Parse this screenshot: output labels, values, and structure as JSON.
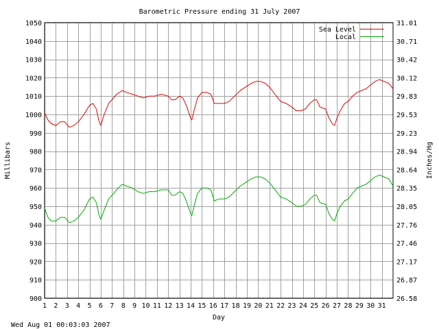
{
  "chart_data": {
    "type": "line",
    "title": "Barometric Pressure ending 31 July 2007",
    "xlabel": "Day",
    "ylabel": "Millibars",
    "ylabel_right": "Inches/Hg",
    "timestamp": "Wed Aug 01 00:03:03 2007",
    "xlim": [
      1,
      32
    ],
    "ylim": [
      900,
      1050
    ],
    "x_ticks": [
      1,
      2,
      3,
      4,
      5,
      6,
      7,
      8,
      9,
      10,
      11,
      12,
      13,
      14,
      15,
      16,
      17,
      18,
      19,
      20,
      21,
      22,
      23,
      24,
      25,
      26,
      27,
      28,
      29,
      30,
      31
    ],
    "y_ticks": [
      900,
      910,
      920,
      930,
      940,
      950,
      960,
      970,
      980,
      990,
      1000,
      1010,
      1020,
      1030,
      1040,
      1050
    ],
    "y_tick_labels": [
      "900",
      "910",
      "920",
      "930",
      "940",
      "950",
      "960",
      "970",
      "980",
      "990",
      "1000",
      "1010",
      "1020",
      "1030",
      "1040",
      "1050"
    ],
    "y2_ticks": [
      900,
      910,
      920,
      930,
      940,
      950,
      960,
      970,
      980,
      990,
      1000,
      1010,
      1020,
      1030,
      1040,
      1050
    ],
    "y2_tick_labels": [
      "26.58",
      "26.87",
      "27.17",
      "27.46",
      "27.76",
      "28.05",
      "28.35",
      "28.64",
      "28.94",
      "29.23",
      "29.53",
      "29.83",
      "30.12",
      "30.42",
      "30.71",
      "31.01"
    ],
    "grid": true,
    "legend_position": "top-right",
    "series": [
      {
        "name": "Sea Level",
        "color": "#dd0000",
        "x": [
          1.0,
          1.3,
          1.6,
          2.0,
          2.4,
          2.8,
          3.2,
          3.6,
          4.0,
          4.5,
          5.0,
          5.3,
          5.6,
          5.85,
          6.0,
          6.3,
          6.7,
          7.0,
          7.4,
          7.9,
          8.3,
          8.8,
          9.3,
          9.8,
          10.3,
          10.8,
          11.4,
          12.0,
          12.3,
          12.6,
          13.0,
          13.3,
          13.6,
          14.0,
          14.1,
          14.3,
          14.6,
          15.0,
          15.4,
          15.8,
          16.1,
          16.5,
          17.0,
          17.4,
          17.9,
          18.4,
          18.9,
          19.4,
          19.8,
          20.2,
          20.6,
          21.0,
          21.5,
          22.0,
          22.5,
          23.0,
          23.4,
          23.8,
          24.2,
          24.6,
          25.0,
          25.2,
          25.5,
          26.0,
          26.3,
          26.6,
          26.8,
          27.0,
          27.3,
          27.7,
          28.0,
          28.4,
          28.8,
          29.2,
          29.6,
          30.0,
          30.4,
          30.8,
          31.2,
          31.6,
          32.0
        ],
        "values": [
          1001,
          997,
          995,
          994,
          996,
          996,
          993,
          994,
          996,
          1000,
          1005,
          1006,
          1003,
          996,
          994,
          1000,
          1006,
          1008,
          1011,
          1013,
          1012,
          1011,
          1010,
          1009,
          1010,
          1010,
          1011,
          1010,
          1008,
          1008,
          1010,
          1009,
          1005,
          998,
          997,
          1002,
          1009,
          1012,
          1012,
          1011,
          1006,
          1006,
          1006,
          1007,
          1010,
          1013,
          1015,
          1017,
          1018,
          1018,
          1017,
          1015,
          1011,
          1007,
          1006,
          1004,
          1002,
          1002,
          1003,
          1006,
          1008,
          1008,
          1004,
          1003,
          998,
          995,
          994,
          998,
          1002,
          1006,
          1007,
          1010,
          1012,
          1013,
          1014,
          1016,
          1018,
          1019,
          1018,
          1017,
          1014
        ]
      },
      {
        "name": "Local",
        "color": "#00aa00",
        "x": [
          1.0,
          1.3,
          1.6,
          2.0,
          2.4,
          2.8,
          3.2,
          3.6,
          4.0,
          4.5,
          5.0,
          5.3,
          5.6,
          5.85,
          6.0,
          6.3,
          6.7,
          7.0,
          7.4,
          7.9,
          8.3,
          8.8,
          9.3,
          9.8,
          10.3,
          10.8,
          11.4,
          12.0,
          12.3,
          12.6,
          13.0,
          13.3,
          13.6,
          14.0,
          14.1,
          14.3,
          14.6,
          15.0,
          15.4,
          15.8,
          16.1,
          16.5,
          17.0,
          17.4,
          17.9,
          18.4,
          18.9,
          19.4,
          19.8,
          20.2,
          20.6,
          21.0,
          21.5,
          22.0,
          22.5,
          23.0,
          23.4,
          23.8,
          24.2,
          24.6,
          25.0,
          25.2,
          25.5,
          26.0,
          26.3,
          26.6,
          26.8,
          27.0,
          27.3,
          27.7,
          28.0,
          28.4,
          28.8,
          29.2,
          29.6,
          30.0,
          30.4,
          30.8,
          31.2,
          31.6,
          32.0
        ],
        "values": [
          949,
          944,
          942,
          942,
          944,
          944,
          941,
          942,
          944,
          948,
          954,
          955,
          952,
          945,
          943,
          948,
          954,
          956,
          959,
          962,
          961,
          960,
          958,
          957,
          958,
          958,
          959,
          959,
          956,
          956,
          958,
          957,
          953,
          946,
          945,
          950,
          957,
          960,
          960,
          959,
          953,
          954,
          954,
          955,
          958,
          961,
          963,
          965,
          966,
          966,
          965,
          963,
          959,
          955,
          954,
          952,
          950,
          950,
          951,
          954,
          956,
          956,
          952,
          951,
          946,
          943,
          942,
          946,
          950,
          953,
          954,
          957,
          960,
          961,
          962,
          964,
          966,
          967,
          966,
          965,
          961
        ]
      }
    ]
  }
}
